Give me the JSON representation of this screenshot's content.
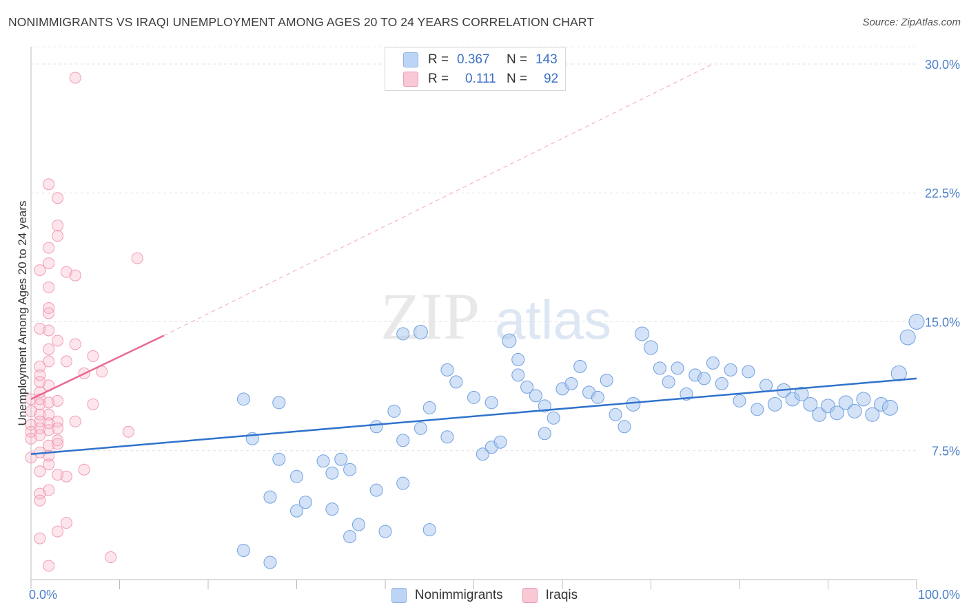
{
  "header": {
    "title": "NONIMMIGRANTS VS IRAQI UNEMPLOYMENT AMONG AGES 20 TO 24 YEARS CORRELATION CHART",
    "source": "Source: ZipAtlas.com"
  },
  "watermark": {
    "part1": "ZIP",
    "part2": "atlas"
  },
  "legend": {
    "rows": [
      {
        "r_label": "R =",
        "r_value": "0.367",
        "n_label": "N =",
        "n_value": "143",
        "color": "#a8c6f0"
      },
      {
        "r_label": "R =",
        "r_value": "0.111",
        "n_label": "N =",
        "n_value": "92",
        "color": "#f5b8c8"
      }
    ]
  },
  "bottom_legend": {
    "items": [
      {
        "label": "Nonimmigrants",
        "color": "#a8c6f0"
      },
      {
        "label": "Iraqis",
        "color": "#f5b8c8"
      }
    ]
  },
  "chart_data": {
    "type": "scatter",
    "title": "NONIMMIGRANTS VS IRAQI UNEMPLOYMENT AMONG AGES 20 TO 24 YEARS CORRELATION CHART",
    "xlabel": "",
    "ylabel": "Unemployment Among Ages 20 to 24 years",
    "xlim": [
      0,
      100
    ],
    "ylim": [
      0,
      31
    ],
    "x_tick_labels": [
      "0.0%",
      "100.0%"
    ],
    "y_ticks": [
      7.5,
      15.0,
      22.5,
      30.0
    ],
    "y_tick_labels": [
      "7.5%",
      "15.0%",
      "22.5%",
      "30.0%"
    ],
    "grid": true,
    "legend_position": "top-center",
    "series": [
      {
        "name": "Nonimmigrants",
        "color": "#6fa0e0",
        "trend": {
          "x": [
            0,
            100
          ],
          "y": [
            7.3,
            11.7
          ]
        },
        "points": [
          [
            24,
            1.7,
            7
          ],
          [
            27,
            1.0,
            7
          ],
          [
            30,
            4.0,
            7
          ],
          [
            27,
            4.8,
            7
          ],
          [
            31,
            4.5,
            7
          ],
          [
            34,
            4.1,
            7
          ],
          [
            36,
            2.5,
            7
          ],
          [
            34,
            6.2,
            7
          ],
          [
            30,
            6.0,
            7
          ],
          [
            28,
            7.0,
            7
          ],
          [
            25,
            8.2,
            7
          ],
          [
            24,
            10.5,
            7
          ],
          [
            28,
            10.3,
            7
          ],
          [
            33,
            6.9,
            7
          ],
          [
            35,
            7.0,
            7
          ],
          [
            36,
            6.4,
            7
          ],
          [
            37,
            3.2,
            7
          ],
          [
            40,
            2.8,
            7
          ],
          [
            39,
            5.2,
            7
          ],
          [
            39,
            8.9,
            7
          ],
          [
            41,
            9.8,
            7
          ],
          [
            42,
            8.1,
            7
          ],
          [
            45,
            10.0,
            7
          ],
          [
            44,
            8.8,
            7
          ],
          [
            47,
            8.3,
            7
          ],
          [
            42,
            5.6,
            7
          ],
          [
            45,
            2.9,
            7
          ],
          [
            44,
            14.4,
            8
          ],
          [
            42,
            14.3,
            7
          ],
          [
            47,
            12.2,
            7
          ],
          [
            48,
            11.5,
            7
          ],
          [
            50,
            10.6,
            7
          ],
          [
            51,
            7.3,
            7
          ],
          [
            52,
            7.7,
            7
          ],
          [
            53,
            8.0,
            7
          ],
          [
            52,
            10.3,
            7
          ],
          [
            54,
            13.9,
            8
          ],
          [
            55,
            11.9,
            7
          ],
          [
            55,
            12.8,
            7
          ],
          [
            56,
            11.2,
            7
          ],
          [
            57,
            10.7,
            7
          ],
          [
            58,
            8.5,
            7
          ],
          [
            58,
            10.1,
            7
          ],
          [
            59,
            9.4,
            7
          ],
          [
            60,
            11.1,
            7
          ],
          [
            61,
            11.4,
            7
          ],
          [
            62,
            12.4,
            7
          ],
          [
            63,
            10.9,
            7
          ],
          [
            64,
            10.6,
            7
          ],
          [
            65,
            11.6,
            7
          ],
          [
            66,
            9.6,
            7
          ],
          [
            67,
            8.9,
            7
          ],
          [
            68,
            10.2,
            8
          ],
          [
            69,
            14.3,
            8
          ],
          [
            70,
            13.5,
            8
          ],
          [
            71,
            12.3,
            7
          ],
          [
            72,
            11.5,
            7
          ],
          [
            73,
            12.3,
            7
          ],
          [
            74,
            10.8,
            7
          ],
          [
            75,
            11.9,
            7
          ],
          [
            76,
            11.7,
            7
          ],
          [
            77,
            12.6,
            7
          ],
          [
            78,
            11.4,
            7
          ],
          [
            79,
            12.2,
            7
          ],
          [
            80,
            10.4,
            7
          ],
          [
            81,
            12.1,
            7
          ],
          [
            82,
            9.9,
            7
          ],
          [
            83,
            11.3,
            7
          ],
          [
            84,
            10.2,
            8
          ],
          [
            85,
            11.0,
            8
          ],
          [
            86,
            10.5,
            8
          ],
          [
            87,
            10.8,
            8
          ],
          [
            88,
            10.2,
            8
          ],
          [
            89,
            9.6,
            8
          ],
          [
            90,
            10.1,
            8
          ],
          [
            91,
            9.7,
            8
          ],
          [
            92,
            10.3,
            8
          ],
          [
            93,
            9.8,
            8
          ],
          [
            94,
            10.5,
            8
          ],
          [
            95,
            9.6,
            8
          ],
          [
            96,
            10.2,
            8
          ],
          [
            97,
            10.0,
            9
          ],
          [
            98,
            12.0,
            9
          ],
          [
            99,
            14.1,
            9
          ],
          [
            100,
            15.0,
            9
          ]
        ]
      },
      {
        "name": "Iraqis",
        "color": "#f29ab3",
        "trend": {
          "x": [
            0,
            15
          ],
          "y": [
            10.5,
            14.2
          ],
          "extended": {
            "x": [
              15,
              77
            ],
            "y": [
              14.2,
              30.0
            ]
          }
        },
        "points": [
          [
            5,
            29.2
          ],
          [
            2,
            23.0
          ],
          [
            3,
            22.2
          ],
          [
            3,
            20.6
          ],
          [
            3,
            20.0
          ],
          [
            2,
            19.3
          ],
          [
            2,
            18.4
          ],
          [
            1,
            18.0
          ],
          [
            4,
            17.9
          ],
          [
            5,
            17.7
          ],
          [
            12,
            18.7
          ],
          [
            2,
            17.0
          ],
          [
            2,
            15.8
          ],
          [
            2,
            15.5
          ],
          [
            1,
            14.6
          ],
          [
            2,
            14.5
          ],
          [
            3,
            13.9
          ],
          [
            5,
            13.7
          ],
          [
            7,
            13.0
          ],
          [
            2,
            13.4
          ],
          [
            2,
            12.7
          ],
          [
            4,
            12.7
          ],
          [
            6,
            12.0
          ],
          [
            8,
            12.1
          ],
          [
            1,
            12.4
          ],
          [
            1,
            11.9
          ],
          [
            1,
            11.5
          ],
          [
            2,
            11.3
          ],
          [
            1,
            10.9
          ],
          [
            1,
            10.5
          ],
          [
            0,
            10.5
          ],
          [
            1,
            10.2
          ],
          [
            2,
            10.3
          ],
          [
            3,
            10.4
          ],
          [
            7,
            10.2
          ],
          [
            0,
            9.8
          ],
          [
            1,
            9.6
          ],
          [
            2,
            9.6
          ],
          [
            1,
            9.2
          ],
          [
            0,
            9.0
          ],
          [
            2,
            9.1
          ],
          [
            3,
            9.2
          ],
          [
            5,
            9.2
          ],
          [
            1,
            8.8
          ],
          [
            0,
            8.6
          ],
          [
            2,
            8.7
          ],
          [
            3,
            8.8
          ],
          [
            1,
            8.4
          ],
          [
            0,
            8.2
          ],
          [
            3,
            8.1
          ],
          [
            11,
            8.6
          ],
          [
            2,
            7.8
          ],
          [
            3,
            7.9
          ],
          [
            1,
            7.4
          ],
          [
            2,
            7.2
          ],
          [
            0,
            7.1
          ],
          [
            2,
            6.7
          ],
          [
            1,
            6.3
          ],
          [
            3,
            6.1
          ],
          [
            4,
            6.0
          ],
          [
            6,
            6.4
          ],
          [
            2,
            5.2
          ],
          [
            1,
            5.0
          ],
          [
            1,
            4.6
          ],
          [
            4,
            3.3
          ],
          [
            3,
            2.8
          ],
          [
            1,
            2.4
          ],
          [
            9,
            1.3
          ],
          [
            2,
            0.8
          ]
        ]
      }
    ]
  }
}
